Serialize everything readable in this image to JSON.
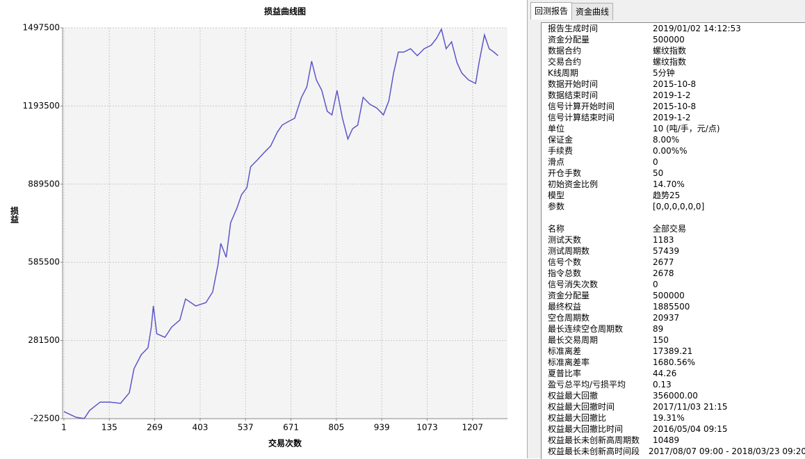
{
  "chart_data": {
    "type": "line",
    "title": "损益曲线图",
    "x_label": "交易次数",
    "y_label": "损益",
    "x": [
      1,
      37,
      61,
      77,
      108,
      138,
      168,
      194,
      208,
      229,
      249,
      259,
      265,
      275,
      299,
      319,
      343,
      360,
      390,
      420,
      440,
      456,
      464,
      480,
      493,
      511,
      525,
      541,
      552,
      572,
      591,
      611,
      631,
      645,
      662,
      682,
      702,
      718,
      732,
      746,
      762,
      778,
      792,
      807,
      823,
      839,
      853,
      868,
      884,
      904,
      924,
      944,
      960,
      974,
      988,
      1004,
      1024,
      1044,
      1064,
      1085,
      1101,
      1115,
      1129,
      1145,
      1161,
      1175,
      1195,
      1216,
      1226,
      1242,
      1256,
      1270,
      1282
    ],
    "values": [
      5000,
      -17000,
      -22000,
      10000,
      42000,
      42000,
      37000,
      78000,
      172000,
      226000,
      253000,
      334000,
      416000,
      308000,
      294000,
      334000,
      361000,
      443000,
      416000,
      429000,
      470000,
      578000,
      659000,
      605000,
      740000,
      794000,
      848000,
      876000,
      957000,
      984000,
      1011000,
      1038000,
      1092000,
      1119000,
      1132000,
      1146000,
      1227000,
      1268000,
      1368000,
      1295000,
      1254000,
      1173000,
      1159000,
      1254000,
      1146000,
      1065000,
      1105000,
      1119000,
      1227000,
      1200000,
      1186000,
      1159000,
      1214000,
      1322000,
      1403000,
      1403000,
      1416000,
      1389000,
      1416000,
      1430000,
      1457000,
      1492000,
      1416000,
      1443000,
      1362000,
      1322000,
      1295000,
      1281000,
      1362000,
      1470000,
      1416000,
      1403000,
      1389000
    ],
    "color": "#5c55c9",
    "xlim": [
      -3,
      1310
    ],
    "xticks": [
      1,
      135,
      269,
      403,
      537,
      671,
      805,
      939,
      1073,
      1207
    ],
    "ylim": [
      -22500,
      1497500
    ],
    "yticks": [
      -22500,
      281500,
      585500,
      889500,
      1193500,
      1497500
    ],
    "grid": true
  },
  "tabs": [
    "回测报告",
    "资金曲线"
  ],
  "report": {
    "section1": [
      [
        "报告生成时间",
        "2019/01/02 14:12:53"
      ],
      [
        "资金分配量",
        "500000"
      ],
      [
        "数据合约",
        "螺纹指数"
      ],
      [
        "交易合约",
        "螺纹指数"
      ],
      [
        "K线周期",
        "5分钟"
      ],
      [
        "数据开始时间",
        "2015-10-8"
      ],
      [
        "数据结束时间",
        "2019-1-2"
      ],
      [
        "信号计算开始时间",
        "2015-10-8"
      ],
      [
        "信号计算结束时间",
        "2019-1-2"
      ],
      [
        "单位",
        "10 (吨/手，元/点)"
      ],
      [
        "保证金",
        "8.00%"
      ],
      [
        "手续费",
        "0.00%%"
      ],
      [
        "滑点",
        "0"
      ],
      [
        "开仓手数",
        "50"
      ],
      [
        "初始资金比例",
        "14.70%"
      ],
      [
        "模型",
        "趋势25"
      ],
      [
        "参数",
        "[0,0,0,0,0,0]"
      ]
    ],
    "section2": [
      [
        "名称",
        "全部交易"
      ],
      [
        "测试天数",
        "1183"
      ],
      [
        "测试周期数",
        "57439"
      ],
      [
        "信号个数",
        "2677"
      ],
      [
        "指令总数",
        "2678"
      ],
      [
        "信号消失次数",
        "0"
      ],
      [
        "资金分配量",
        "500000"
      ],
      [
        "最终权益",
        "1885500"
      ],
      [
        "空仓周期数",
        "20937"
      ],
      [
        "最长连续空仓周期数",
        "89"
      ],
      [
        "最长交易周期",
        "150"
      ],
      [
        "标准离差",
        "17389.21"
      ],
      [
        "标准离差率",
        "1680.56%"
      ],
      [
        "夏普比率",
        "44.26"
      ],
      [
        "盈亏总平均/亏损平均",
        "0.13"
      ],
      [
        "权益最大回撤",
        "356000.00"
      ],
      [
        "权益最大回撤时间",
        "2017/11/03 21:15"
      ],
      [
        "权益最大回撤比",
        "19.31%"
      ],
      [
        "权益最大回撤比时间",
        "2016/05/04 09:15"
      ],
      [
        "权益最长未创新高周期数",
        "10489"
      ],
      [
        "权益最长未创新高时间段",
        "2017/08/07 09:00 - 2018/03/23 09:20"
      ]
    ]
  }
}
